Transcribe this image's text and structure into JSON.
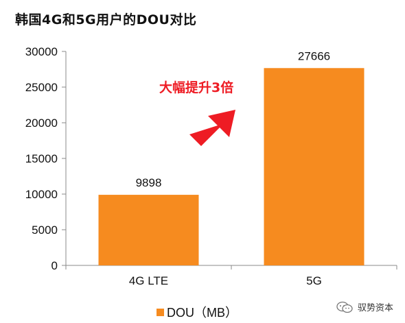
{
  "title": "韩国4G和5G用户的DOU对比",
  "annotation": "大幅提升3倍",
  "watermark": "驭势资本",
  "colors": {
    "bar": "#f68b1f",
    "annotation": "#ee1c24",
    "axis": "#888888"
  },
  "chart_data": {
    "type": "bar",
    "title": "韩国4G和5G用户的DOU对比",
    "categories": [
      "4G LTE",
      "5G"
    ],
    "series": [
      {
        "name": "DOU（MB）",
        "values": [
          9898,
          27666
        ]
      }
    ],
    "data_labels": [
      "9898",
      "27666"
    ],
    "y_ticks": [
      "0",
      "5000",
      "10000",
      "15000",
      "20000",
      "25000",
      "30000"
    ],
    "ylim": [
      0,
      30000
    ],
    "xlabel": "",
    "ylabel": "",
    "grid": false,
    "legend_position": "bottom"
  }
}
